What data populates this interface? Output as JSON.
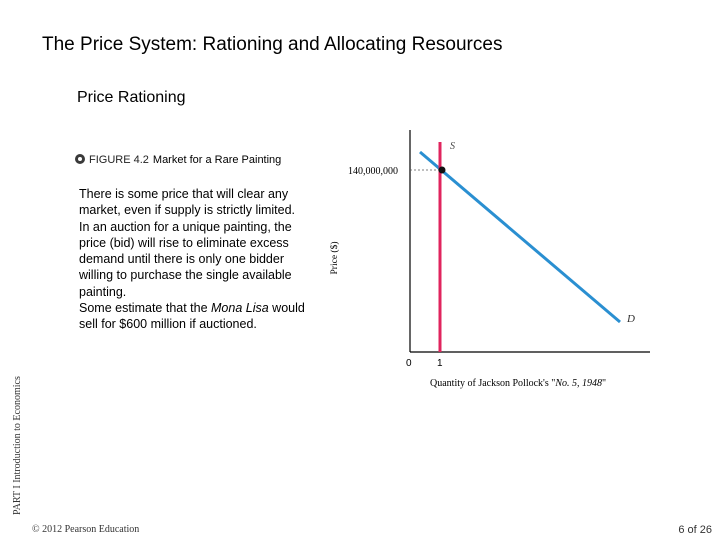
{
  "slide": {
    "title": "The Price System: Rationing and Allocating Resources",
    "subtitle": "Price Rationing",
    "figure_number": "FIGURE 4.2",
    "figure_title": "Market for a Rare Painting",
    "body": [
      "There is some price that will clear any market, even if supply is strictly limited.",
      "In an auction for a unique painting, the price (bid) will rise to eliminate excess demand until there is only one bidder willing to purchase the single available painting.",
      "Some estimate that the ",
      "Mona Lisa",
      " would sell for $600 million if auctioned."
    ],
    "side_label": "PART I Introduction to Economics",
    "copyright": "© 2012 Pearson Education",
    "page": "6 of 26"
  },
  "chart_data": {
    "type": "line",
    "xlabel_prefix": "Quantity of Jackson Pollock's \"",
    "xlabel_title": "No. 5, 1948",
    "xlabel_suffix": "\"",
    "ylabel": "Price ($)",
    "x_ticks": [
      "0",
      "1"
    ],
    "y_tick_label": "140,000,000",
    "equilibrium": {
      "x": 1,
      "y": 140000000
    },
    "series": [
      {
        "name": "S",
        "type": "vertical",
        "x": 1,
        "color": "#e0245e"
      },
      {
        "name": "D",
        "type": "demand",
        "color": "#2a8fd1"
      }
    ]
  }
}
